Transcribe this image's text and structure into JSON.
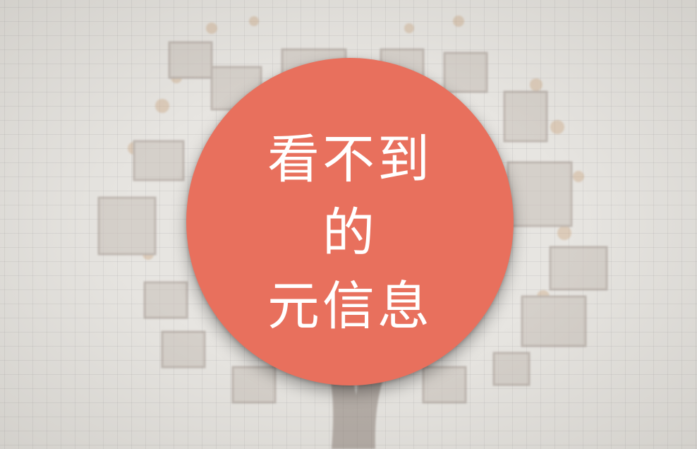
{
  "colors": {
    "background": "#e7e5e1",
    "badge": "#e8705d",
    "text": "#ffffff"
  },
  "badge": {
    "lines": [
      "看不到",
      "的",
      "元信息"
    ]
  }
}
